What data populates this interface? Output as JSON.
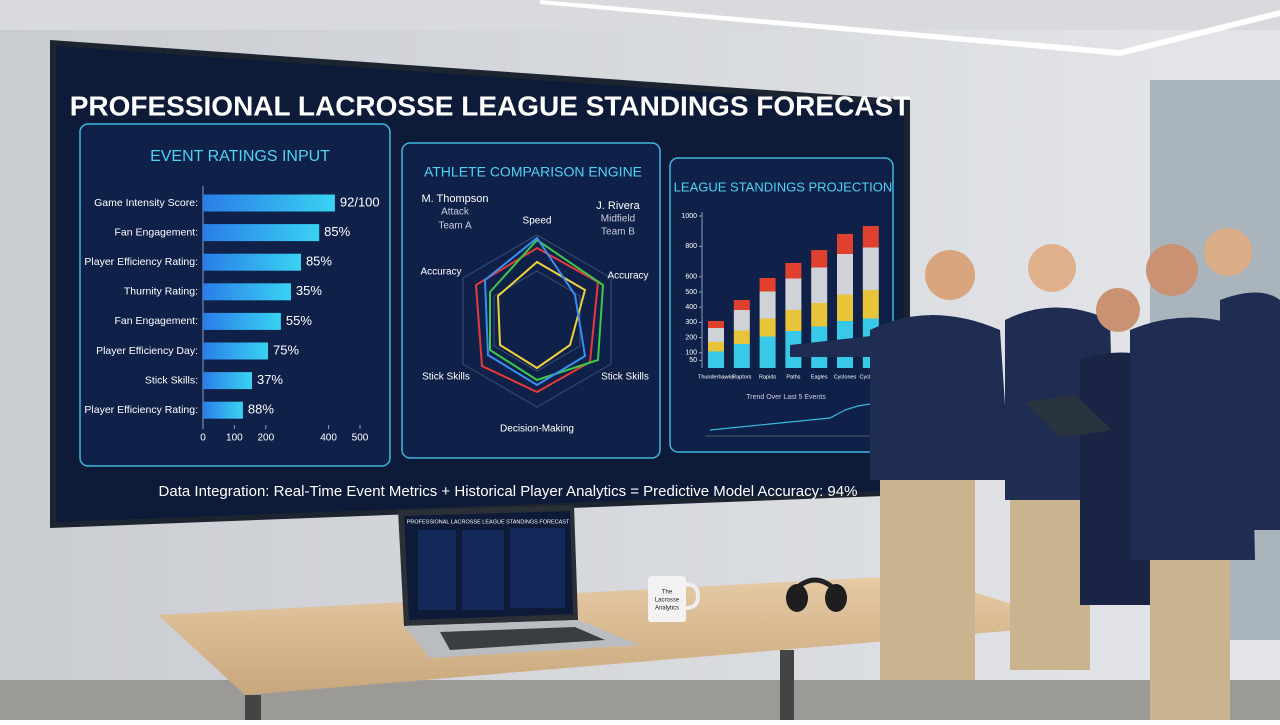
{
  "title": "PROFESSIONAL LACROSSE LEAGUE STANDINGS FORECAST",
  "ratings": {
    "title": "EVENT RATINGS INPUT",
    "labels": [
      "Game Intensity Score:",
      "Fan Engagement:",
      "Player Efficiency Rating:",
      "Thurnity Rating:",
      "Fan Engagement:",
      "Player Efficiency Day:",
      "Stick Skills:",
      "Player Efficiency Rating:"
    ],
    "values": [
      420,
      370,
      312,
      280,
      248,
      207,
      156,
      127
    ],
    "annotations": [
      "92/100",
      "85%",
      "85%",
      "35%",
      "55%",
      "75%",
      "37%",
      "88%"
    ],
    "xlim": [
      0,
      500
    ],
    "xticks": [
      0,
      100,
      200,
      400,
      500
    ]
  },
  "comparison": {
    "title": "ATHLETE COMPARISON ENGINE",
    "player_a": [
      "M. Thompson",
      "Attack",
      "Team A"
    ],
    "player_b": [
      "J. Rivera",
      "Midfield",
      "Team B"
    ],
    "axes": [
      "Speed",
      "Accuracy",
      "Stick Skills",
      "Decision-Making",
      "Stick Skills",
      "Accuracy"
    ]
  },
  "standings": {
    "title": "LEAGUE STANDINGS PROJECTION",
    "categories": [
      "Thunderhawks",
      "Raptors",
      "Rapids",
      "Paths",
      "Eagles",
      "Cyclones",
      "Cyclones"
    ],
    "values": [
      309,
      447,
      592,
      691,
      776,
      882,
      934
    ],
    "ylim": [
      0,
      1000
    ],
    "yticks": [
      1000,
      800,
      600,
      500,
      400,
      300,
      200,
      100,
      50
    ],
    "trend_title": "Trend Over Last 5 Events"
  },
  "footer": "Data Integration: Real-Time Event Metrics + Historical Player Analytics = Predictive Model Accuracy: 94%",
  "laptop_title": "PROFESSIONAL LACROSSE LEAGUE STANDINGS FORECAST",
  "mug_text": [
    "The",
    "Lacrosse",
    "Analytics"
  ]
}
